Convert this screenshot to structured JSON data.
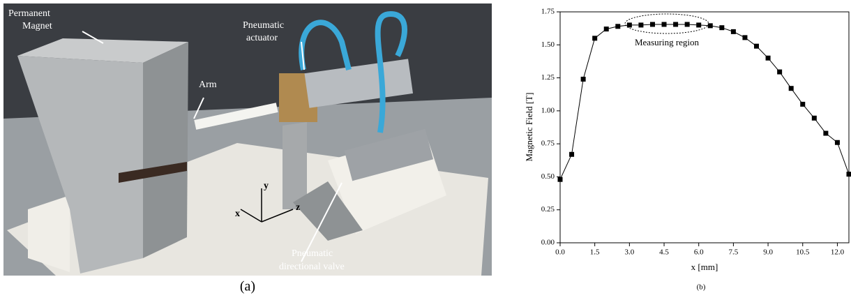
{
  "photo": {
    "labels": [
      {
        "lines": [
          "Permanent",
          "Magnet"
        ]
      },
      {
        "lines": [
          "Pneumatic",
          "actuator"
        ]
      },
      {
        "lines": [
          "Arm"
        ]
      },
      {
        "lines": [
          "Pneumatic",
          "directional valve"
        ]
      }
    ],
    "axes": [
      "x",
      "y",
      "z"
    ],
    "caption": "(a)"
  },
  "chart_data": {
    "type": "line",
    "x_label": "x [mm]",
    "y_label": "Magnetic Field [T]",
    "annotation": "Measuring region",
    "caption": "(b)",
    "x": [
      0,
      0.5,
      1,
      1.5,
      2,
      2.5,
      3,
      3.5,
      4,
      4.5,
      5,
      5.5,
      6,
      6.5,
      7,
      7.5,
      8,
      8.5,
      9,
      9.5,
      10,
      10.5,
      11,
      11.5,
      12,
      12.5
    ],
    "series": [
      {
        "color": "#000000",
        "values": [
          0.48,
          0.67,
          1.24,
          1.55,
          1.62,
          1.64,
          1.65,
          1.65,
          1.655,
          1.655,
          1.655,
          1.655,
          1.65,
          1.645,
          1.63,
          1.6,
          1.555,
          1.49,
          1.4,
          1.295,
          1.17,
          1.05,
          0.945,
          0.83,
          0.76,
          0.52
        ]
      }
    ],
    "xlim": [
      0,
      12.5
    ],
    "ylim": [
      0,
      1.75
    ],
    "xticks": [
      {
        "value": 0,
        "label": "0.0"
      },
      {
        "value": 1.5,
        "label": "1.5"
      },
      {
        "value": 3,
        "label": "3.0"
      },
      {
        "value": 4.5,
        "label": "4.5"
      },
      {
        "value": 6,
        "label": "6.0"
      },
      {
        "value": 7.5,
        "label": "7.5"
      },
      {
        "value": 9,
        "label": "9.0"
      },
      {
        "value": 10.5,
        "label": "10.5"
      },
      {
        "value": 12,
        "label": "12.0"
      }
    ],
    "yticks": [
      {
        "value": 0,
        "label": "0.00"
      },
      {
        "value": 0.25,
        "label": "0.25"
      },
      {
        "value": 0.5,
        "label": "0.50"
      },
      {
        "value": 0.75,
        "label": "0.75"
      },
      {
        "value": 1,
        "label": "1.00"
      },
      {
        "value": 1.25,
        "label": "1.25"
      },
      {
        "value": 1.5,
        "label": "1.50"
      },
      {
        "value": 1.75,
        "label": "1.75"
      }
    ]
  }
}
